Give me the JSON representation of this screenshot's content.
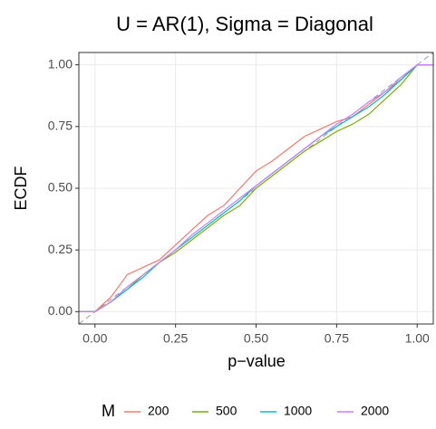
{
  "chart_data": {
    "type": "line",
    "title": "U = AR(1), Sigma = Diagonal",
    "x_label": "p−value",
    "y_label": "ECDF",
    "legend_title": "M",
    "legend_position": "bottom",
    "grid": true,
    "diagonal": true,
    "xlim": [
      -0.05,
      1.05
    ],
    "ylim": [
      -0.05,
      1.05
    ],
    "xticks": [
      {
        "value": 0,
        "label": "0.00"
      },
      {
        "value": 0.25,
        "label": "0.25"
      },
      {
        "value": 0.5,
        "label": "0.50"
      },
      {
        "value": 0.75,
        "label": "0.75"
      },
      {
        "value": 1,
        "label": "1.00"
      }
    ],
    "yticks": [
      {
        "value": 0,
        "label": "0.00"
      },
      {
        "value": 0.25,
        "label": "0.25"
      },
      {
        "value": 0.5,
        "label": "0.50"
      },
      {
        "value": 0.75,
        "label": "0.75"
      },
      {
        "value": 1,
        "label": "1.00"
      }
    ],
    "x": [
      -0.05,
      0,
      0.05,
      0.1,
      0.15,
      0.2,
      0.25,
      0.3,
      0.35,
      0.4,
      0.45,
      0.5,
      0.55,
      0.6,
      0.65,
      0.7,
      0.75,
      0.8,
      0.85,
      0.9,
      0.95,
      1.0,
      1.05
    ],
    "series": [
      {
        "name": "200",
        "color": "#F8766D",
        "values": [
          0,
          0,
          0.06,
          0.15,
          0.18,
          0.21,
          0.27,
          0.33,
          0.39,
          0.43,
          0.5,
          0.57,
          0.61,
          0.66,
          0.71,
          0.74,
          0.77,
          0.79,
          0.84,
          0.89,
          0.94,
          1,
          1
        ]
      },
      {
        "name": "500",
        "color": "#7CAE00",
        "values": [
          0,
          0,
          0.04,
          0.09,
          0.15,
          0.2,
          0.24,
          0.29,
          0.34,
          0.39,
          0.43,
          0.5,
          0.55,
          0.6,
          0.65,
          0.69,
          0.73,
          0.76,
          0.8,
          0.86,
          0.92,
          1,
          1
        ]
      },
      {
        "name": "1000",
        "color": "#00BFC4",
        "values": [
          0,
          0,
          0.04,
          0.09,
          0.14,
          0.2,
          0.25,
          0.3,
          0.35,
          0.4,
          0.45,
          0.51,
          0.56,
          0.61,
          0.66,
          0.71,
          0.75,
          0.79,
          0.83,
          0.88,
          0.94,
          1,
          1
        ]
      },
      {
        "name": "2000",
        "color": "#C77CFF",
        "values": [
          0,
          0,
          0.04,
          0.1,
          0.15,
          0.2,
          0.25,
          0.31,
          0.36,
          0.41,
          0.46,
          0.51,
          0.56,
          0.61,
          0.66,
          0.71,
          0.76,
          0.8,
          0.85,
          0.89,
          0.95,
          1,
          1
        ]
      }
    ]
  }
}
